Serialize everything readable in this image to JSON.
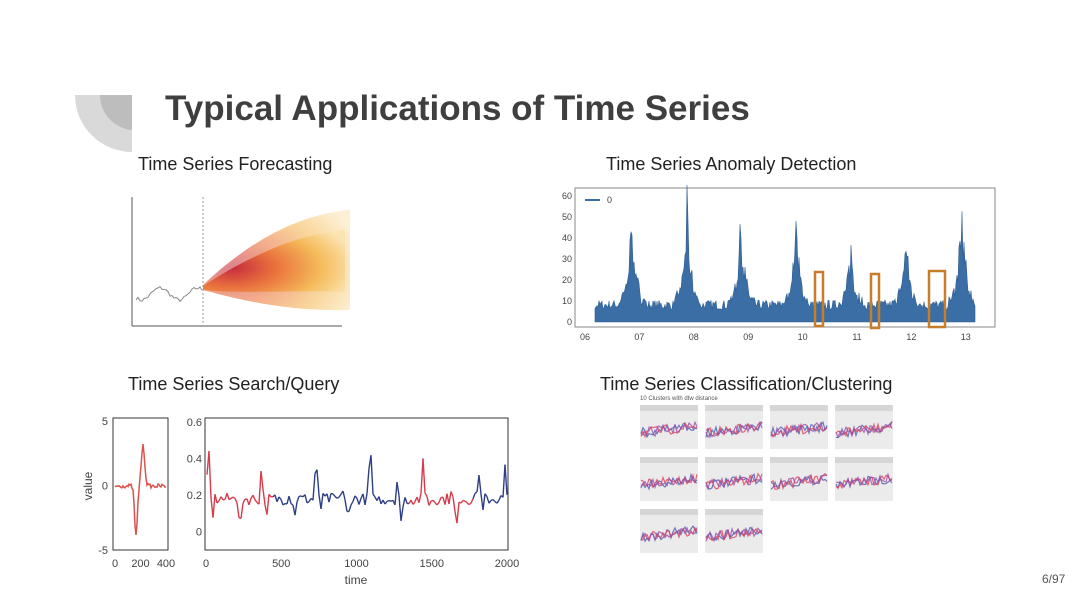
{
  "header": {
    "title": "Typical Applications of Time Series"
  },
  "panels": [
    {
      "title": "Time Series Forecasting"
    },
    {
      "title": "Time Series Anomaly Detection",
      "legend": "0",
      "yticks": [
        "0",
        "10",
        "20",
        "30",
        "40",
        "50",
        "60"
      ],
      "xticks": [
        "06",
        "07",
        "08",
        "09",
        "10",
        "11",
        "12",
        "13"
      ]
    },
    {
      "title": "Time Series Search/Query",
      "left": {
        "ylabel": "value",
        "yticks": [
          "5",
          "0",
          "-5"
        ],
        "xticks": [
          "0",
          "200",
          "400"
        ]
      },
      "right": {
        "xlabel": "time",
        "yticks": [
          "0.6",
          "0.4",
          "0.2",
          "0"
        ],
        "xticks": [
          "0",
          "500",
          "1000",
          "1500",
          "2000"
        ]
      }
    },
    {
      "title": "Time Series Classification/Clustering",
      "subtitle": "10 Clusters with dtw distance"
    }
  ],
  "footer": {
    "page": "6/97"
  }
}
